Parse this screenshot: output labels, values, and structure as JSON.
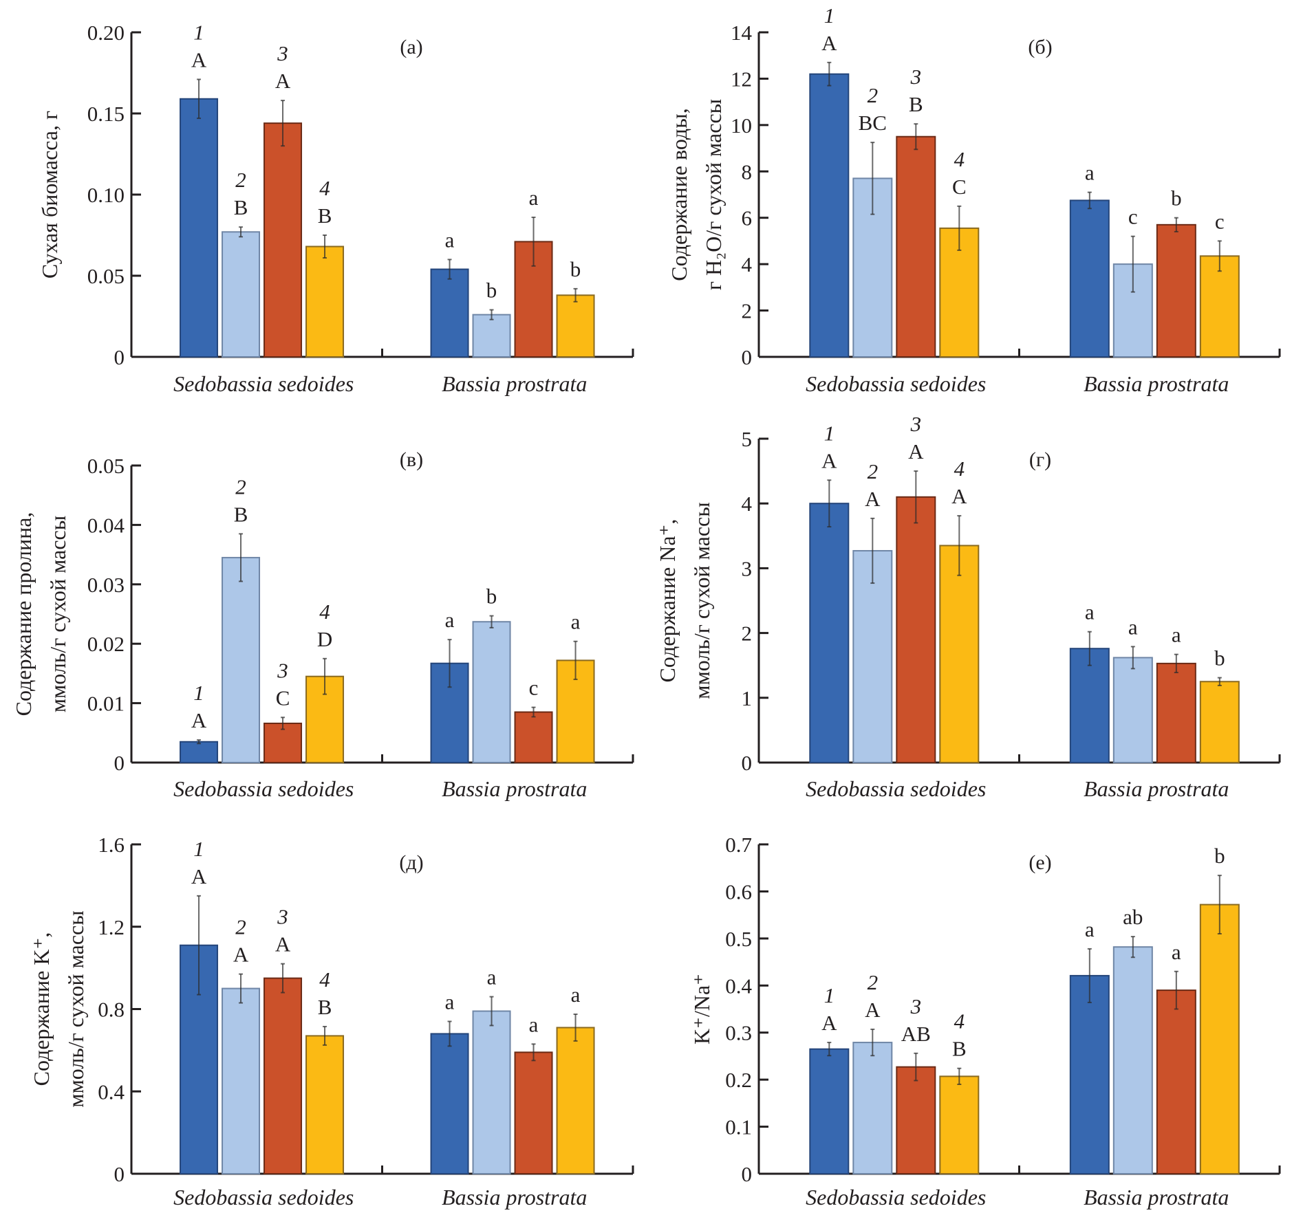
{
  "figure": {
    "series_colors": [
      "#3768b0",
      "#adc7e8",
      "#cb512a",
      "#fbba14"
    ],
    "series_strokes": [
      "#24457a",
      "#6f86a6",
      "#6b2a15",
      "#8a6a20"
    ],
    "series_names": [
      "1",
      "2",
      "3",
      "4"
    ]
  },
  "chart_data": [
    {
      "id": "a",
      "type": "bar",
      "panel_label": "(а)",
      "ylabel": [
        "Сухая биомасса, г"
      ],
      "ylim": [
        0,
        0.2
      ],
      "yticks": [
        0,
        0.05,
        0.1,
        0.15,
        0.2
      ],
      "ytick_labels": [
        "0",
        "0.05",
        "0.10",
        "0.15",
        "0.20"
      ],
      "categories": [
        "Sedobassia sedoides",
        "Bassia prostrata"
      ],
      "series": [
        {
          "name": "1",
          "values": [
            0.159,
            0.054
          ],
          "errors": [
            0.012,
            0.006
          ]
        },
        {
          "name": "2",
          "values": [
            0.077,
            0.026
          ],
          "errors": [
            0.003,
            0.003
          ]
        },
        {
          "name": "3",
          "values": [
            0.144,
            0.071
          ],
          "errors": [
            0.014,
            0.015
          ]
        },
        {
          "name": "4",
          "values": [
            0.068,
            0.038
          ],
          "errors": [
            0.007,
            0.004
          ]
        }
      ],
      "sig_letters": [
        [
          "A",
          "B",
          "A",
          "B"
        ],
        [
          "a",
          "b",
          "a",
          "b"
        ]
      ],
      "show_numbers": true
    },
    {
      "id": "b",
      "type": "bar",
      "panel_label": "(б)",
      "ylabel": [
        "Содержание воды,",
        "г H₂O/г сухой массы"
      ],
      "ylim": [
        0,
        14
      ],
      "yticks": [
        0,
        2,
        4,
        6,
        8,
        10,
        12,
        14
      ],
      "ytick_labels": [
        "0",
        "2",
        "4",
        "6",
        "8",
        "10",
        "12",
        "14"
      ],
      "categories": [
        "Sedobassia sedoides",
        "Bassia prostrata"
      ],
      "series": [
        {
          "name": "1",
          "values": [
            12.2,
            6.75
          ],
          "errors": [
            0.5,
            0.35
          ]
        },
        {
          "name": "2",
          "values": [
            7.7,
            4.0
          ],
          "errors": [
            1.55,
            1.2
          ]
        },
        {
          "name": "3",
          "values": [
            9.5,
            5.7
          ],
          "errors": [
            0.55,
            0.3
          ]
        },
        {
          "name": "4",
          "values": [
            5.55,
            4.35
          ],
          "errors": [
            0.95,
            0.65
          ]
        }
      ],
      "sig_letters": [
        [
          "A",
          "BC",
          "B",
          "C"
        ],
        [
          "a",
          "c",
          "b",
          "c"
        ]
      ],
      "show_numbers": true
    },
    {
      "id": "v",
      "type": "bar",
      "panel_label": "(в)",
      "ylabel": [
        "Содержание пролина,",
        "ммоль/г сухой массы"
      ],
      "ylim": [
        0,
        0.05
      ],
      "yticks": [
        0,
        0.01,
        0.02,
        0.03,
        0.04,
        0.05
      ],
      "ytick_labels": [
        "0",
        "0.01",
        "0.02",
        "0.03",
        "0.04",
        "0.05"
      ],
      "categories": [
        "Sedobassia sedoides",
        "Bassia prostrata"
      ],
      "series": [
        {
          "name": "1",
          "values": [
            0.0035,
            0.0167
          ],
          "errors": [
            0.0003,
            0.004
          ]
        },
        {
          "name": "2",
          "values": [
            0.0345,
            0.0237
          ],
          "errors": [
            0.004,
            0.001
          ]
        },
        {
          "name": "3",
          "values": [
            0.0066,
            0.0085
          ],
          "errors": [
            0.001,
            0.0008
          ]
        },
        {
          "name": "4",
          "values": [
            0.0145,
            0.0172
          ],
          "errors": [
            0.003,
            0.0032
          ]
        }
      ],
      "sig_letters": [
        [
          "A",
          "B",
          "C",
          "D"
        ],
        [
          "a",
          "b",
          "c",
          "a"
        ]
      ],
      "show_numbers": true
    },
    {
      "id": "g",
      "type": "bar",
      "panel_label": "(г)",
      "ylabel": [
        "Содержание Na⁺,",
        "ммоль/г сухой массы"
      ],
      "ylim": [
        0,
        5
      ],
      "yticks": [
        0,
        1,
        2,
        3,
        4,
        5
      ],
      "ytick_labels": [
        "0",
        "1",
        "2",
        "3",
        "4",
        "5"
      ],
      "categories": [
        "Sedobassia sedoides",
        "Bassia prostrata"
      ],
      "series": [
        {
          "name": "1",
          "values": [
            4.0,
            1.76
          ],
          "errors": [
            0.36,
            0.26
          ]
        },
        {
          "name": "2",
          "values": [
            3.27,
            1.62
          ],
          "errors": [
            0.5,
            0.17
          ]
        },
        {
          "name": "3",
          "values": [
            4.1,
            1.53
          ],
          "errors": [
            0.4,
            0.14
          ]
        },
        {
          "name": "4",
          "values": [
            3.35,
            1.25
          ],
          "errors": [
            0.46,
            0.06
          ]
        }
      ],
      "sig_letters": [
        [
          "A",
          "A",
          "A",
          "A"
        ],
        [
          "a",
          "a",
          "a",
          "b"
        ]
      ],
      "show_numbers": true
    },
    {
      "id": "d",
      "type": "bar",
      "panel_label": "(д)",
      "ylabel": [
        "Содержание K⁺,",
        "ммоль/г сухой массы"
      ],
      "ylim": [
        0,
        1.6
      ],
      "yticks": [
        0,
        0.4,
        0.8,
        1.2,
        1.6
      ],
      "ytick_labels": [
        "0",
        "0.4",
        "0.8",
        "1.2",
        "1.6"
      ],
      "categories": [
        "Sedobassia sedoides",
        "Bassia prostrata"
      ],
      "series": [
        {
          "name": "1",
          "values": [
            1.11,
            0.68
          ],
          "errors": [
            0.24,
            0.06
          ]
        },
        {
          "name": "2",
          "values": [
            0.9,
            0.79
          ],
          "errors": [
            0.07,
            0.07
          ]
        },
        {
          "name": "3",
          "values": [
            0.95,
            0.59
          ],
          "errors": [
            0.07,
            0.04
          ]
        },
        {
          "name": "4",
          "values": [
            0.67,
            0.71
          ],
          "errors": [
            0.045,
            0.065
          ]
        }
      ],
      "sig_letters": [
        [
          "A",
          "A",
          "A",
          "B"
        ],
        [
          "a",
          "a",
          "a",
          "a"
        ]
      ],
      "show_numbers": true
    },
    {
      "id": "e",
      "type": "bar",
      "panel_label": "(е)",
      "ylabel": [
        "K⁺/Na⁺"
      ],
      "ylim": [
        0,
        0.7
      ],
      "yticks": [
        0,
        0.1,
        0.2,
        0.3,
        0.4,
        0.5,
        0.6,
        0.7
      ],
      "ytick_labels": [
        "0",
        "0.1",
        "0.2",
        "0.3",
        "0.4",
        "0.5",
        "0.6",
        "0.7"
      ],
      "categories": [
        "Sedobassia sedoides",
        "Bassia prostrata"
      ],
      "series": [
        {
          "name": "1",
          "values": [
            0.265,
            0.421
          ],
          "errors": [
            0.014,
            0.057
          ]
        },
        {
          "name": "2",
          "values": [
            0.279,
            0.482
          ],
          "errors": [
            0.028,
            0.022
          ]
        },
        {
          "name": "3",
          "values": [
            0.227,
            0.39
          ],
          "errors": [
            0.029,
            0.04
          ]
        },
        {
          "name": "4",
          "values": [
            0.207,
            0.572
          ],
          "errors": [
            0.017,
            0.062
          ]
        }
      ],
      "sig_letters": [
        [
          "A",
          "A",
          "AB",
          "B"
        ],
        [
          "a",
          "ab",
          "a",
          "b"
        ]
      ],
      "show_numbers": true
    }
  ]
}
